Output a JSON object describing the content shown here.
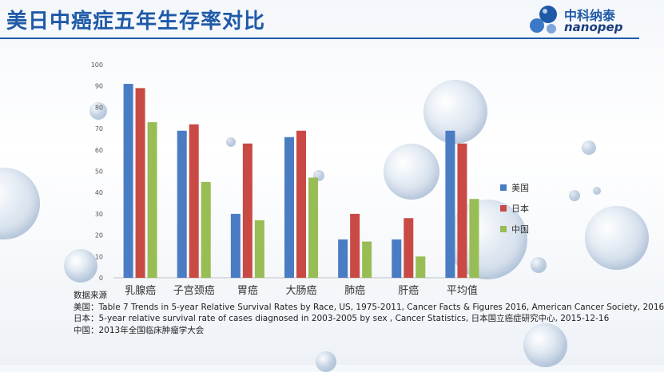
{
  "header": {
    "title": "美日中癌症五年生存率对比",
    "logo_cn": "中科纳泰",
    "logo_en": "nanopep"
  },
  "colors": {
    "us": "#4a7cc4",
    "japan": "#c94a45",
    "china": "#98bd54",
    "accent": "#1f5aa8"
  },
  "chart_data": {
    "type": "bar",
    "categories": [
      "乳腺癌",
      "子宫颈癌",
      "胃癌",
      "大肠癌",
      "肺癌",
      "肝癌",
      "平均值"
    ],
    "series": [
      {
        "name": "美国",
        "values": [
          91,
          69,
          30,
          66,
          18,
          18,
          69
        ]
      },
      {
        "name": "日本",
        "values": [
          89,
          72,
          63,
          69,
          30,
          28,
          63
        ]
      },
      {
        "name": "中国",
        "values": [
          73,
          45,
          27,
          47,
          17,
          10,
          37
        ]
      }
    ],
    "yticks": [
      "0",
      "10",
      "20",
      "30",
      "40",
      "50",
      "60",
      "70",
      "80",
      "90",
      "100"
    ],
    "ylim": [
      0,
      100
    ],
    "grid": false,
    "legend_position": "right"
  },
  "sources": {
    "heading": "数据来源",
    "lines": [
      "美国：Table 7 Trends in 5-year Relative Survival Rates by Race, US, 1975-2011, Cancer Facts & Figures 2016, American Cancer Society, 2016",
      "日本：5-year relative survival rate of cases diagnosed in 2003-2005 by sex , Cancer Statistics, 日本国立癌症研究中心, 2015-12-16",
      "中国：2013年全国临床肿瘤学大会"
    ]
  }
}
